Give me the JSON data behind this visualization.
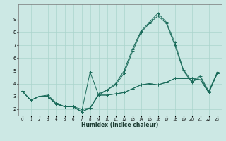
{
  "xlabel": "Humidex (Indice chaleur)",
  "ylabel": "",
  "bg_color": "#cce8e4",
  "grid_color": "#aad4cc",
  "line_color": "#1a6b5a",
  "xlim": [
    -0.5,
    23.5
  ],
  "ylim": [
    1.5,
    10.2
  ],
  "yticks": [
    2,
    3,
    4,
    5,
    6,
    7,
    8,
    9
  ],
  "xticks": [
    0,
    1,
    2,
    3,
    4,
    5,
    6,
    7,
    8,
    9,
    10,
    11,
    12,
    13,
    14,
    15,
    16,
    17,
    18,
    19,
    20,
    21,
    22,
    23
  ],
  "series": [
    [
      3.4,
      2.7,
      3.0,
      3.0,
      2.4,
      2.2,
      2.2,
      1.8,
      2.1,
      3.1,
      3.1,
      3.2,
      3.3,
      3.6,
      3.9,
      4.0,
      3.9,
      4.1,
      4.4,
      4.4,
      4.4,
      4.3,
      3.3,
      4.8
    ],
    [
      3.4,
      2.7,
      3.0,
      3.0,
      2.4,
      2.2,
      2.2,
      1.8,
      4.9,
      3.1,
      3.1,
      3.2,
      3.3,
      3.6,
      3.9,
      4.0,
      3.9,
      4.1,
      4.4,
      4.4,
      4.4,
      4.3,
      3.3,
      4.8
    ],
    [
      3.4,
      2.7,
      3.0,
      3.0,
      2.4,
      2.2,
      2.2,
      1.8,
      2.1,
      3.1,
      3.5,
      3.9,
      4.8,
      6.5,
      8.0,
      8.7,
      9.3,
      8.7,
      7.0,
      5.0,
      4.1,
      4.5,
      3.3,
      4.8
    ],
    [
      3.4,
      2.7,
      3.0,
      3.1,
      2.5,
      2.2,
      2.2,
      2.0,
      2.1,
      3.2,
      3.5,
      4.0,
      5.0,
      6.7,
      8.1,
      8.8,
      9.5,
      8.8,
      7.2,
      5.1,
      4.2,
      4.6,
      3.4,
      4.9
    ]
  ]
}
